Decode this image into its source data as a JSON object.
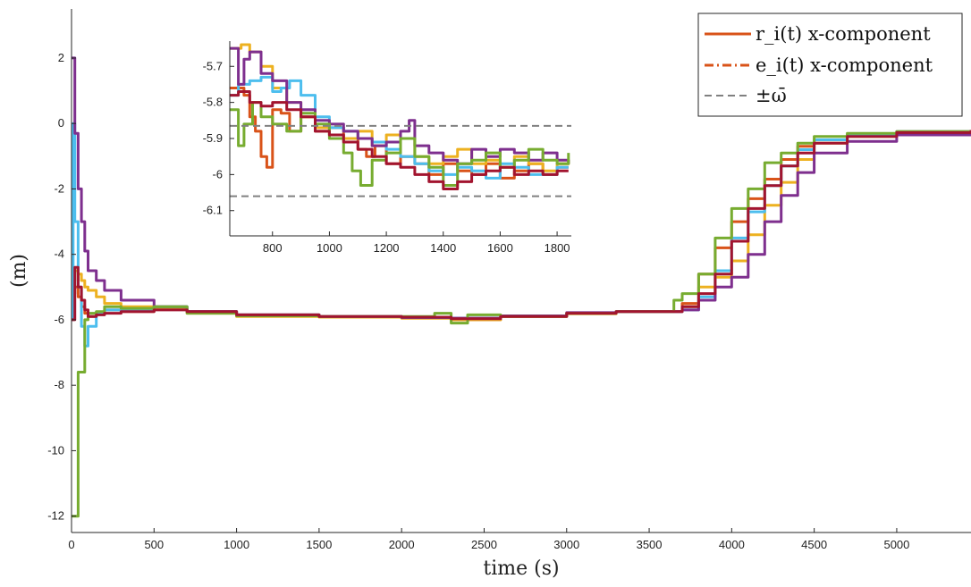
{
  "chart_data": {
    "type": "line",
    "xlabel": "time (s)",
    "ylabel": "(m)",
    "xlim": [
      0,
      5450
    ],
    "ylim": [
      -12.5,
      3.5
    ],
    "xticks": [
      "0",
      "500",
      "1000",
      "1500",
      "2000",
      "2500",
      "3000",
      "3500",
      "4000",
      "4500",
      "5000"
    ],
    "yticks": [
      "2",
      "0",
      "-2",
      "-4",
      "-6",
      "-8",
      "-10",
      "-12"
    ],
    "grid": false,
    "legend_position": "top-right",
    "legend": [
      {
        "label": "r_i(t) x-component",
        "style": "solid",
        "color": "#d95319"
      },
      {
        "label": "e_i(t) x-component",
        "style": "dash-dot",
        "color": "#d95319"
      },
      {
        "label": "±ω̄",
        "style": "dashed",
        "color": "#808080"
      }
    ],
    "series": [
      {
        "color": "#d95319",
        "x": [
          0,
          10,
          20,
          40,
          60,
          80,
          100,
          150,
          200,
          300,
          500,
          700,
          1000,
          1500,
          2000,
          2300,
          2600,
          3000,
          3300,
          3600,
          3700,
          3800,
          3900,
          4000,
          4100,
          4200,
          4300,
          4400,
          4500,
          4700,
          5000,
          5450
        ],
        "y": [
          -6,
          -5.2,
          -5.0,
          -5.3,
          -5.6,
          -5.8,
          -5.9,
          -5.8,
          -5.7,
          -5.75,
          -5.65,
          -5.75,
          -5.85,
          -5.9,
          -5.95,
          -6.0,
          -5.9,
          -5.8,
          -5.75,
          -5.75,
          -5.5,
          -4.6,
          -3.8,
          -3.0,
          -2.3,
          -1.7,
          -1.1,
          -0.7,
          -0.5,
          -0.35,
          -0.25,
          -0.2
        ]
      },
      {
        "color": "#edb120",
        "x": [
          0,
          20,
          40,
          60,
          80,
          100,
          150,
          200,
          300,
          500,
          700,
          1000,
          1500,
          2000,
          2300,
          2600,
          3000,
          3300,
          3600,
          3700,
          3800,
          3900,
          4000,
          4100,
          4200,
          4300,
          4400,
          4500,
          4700,
          5000,
          5450
        ],
        "y": [
          -4.8,
          -4.5,
          -4.6,
          -4.8,
          -5.0,
          -5.1,
          -5.3,
          -5.5,
          -5.6,
          -5.65,
          -5.8,
          -5.9,
          -5.92,
          -5.95,
          -6.0,
          -5.9,
          -5.82,
          -5.75,
          -5.75,
          -5.6,
          -5.0,
          -4.7,
          -4.2,
          -3.4,
          -2.5,
          -1.8,
          -1.1,
          -0.6,
          -0.4,
          -0.3,
          -0.2
        ]
      },
      {
        "color": "#4dbeee",
        "x": [
          0,
          10,
          20,
          40,
          60,
          80,
          100,
          150,
          200,
          300,
          500,
          700,
          1000,
          1500,
          2000,
          2300,
          2600,
          3000,
          3300,
          3600,
          3700,
          3800,
          3900,
          4000,
          4100,
          4200,
          4300,
          4400,
          4500,
          4700,
          5000,
          5450
        ],
        "y": [
          -6,
          0,
          -3,
          -5,
          -6.2,
          -6.8,
          -6.2,
          -5.8,
          -5.7,
          -5.7,
          -5.6,
          -5.75,
          -5.85,
          -5.9,
          -5.93,
          -5.95,
          -5.88,
          -5.8,
          -5.75,
          -5.75,
          -5.7,
          -5.3,
          -4.5,
          -3.5,
          -2.7,
          -1.9,
          -1.3,
          -0.8,
          -0.5,
          -0.35,
          -0.25,
          -0.2
        ]
      },
      {
        "color": "#7e2f8e",
        "x": [
          0,
          20,
          40,
          60,
          80,
          100,
          150,
          200,
          300,
          500,
          700,
          1000,
          1500,
          2000,
          2300,
          2600,
          3000,
          3300,
          3600,
          3700,
          3800,
          3900,
          4000,
          4100,
          4200,
          4300,
          4400,
          4500,
          4700,
          5000,
          5450
        ],
        "y": [
          2,
          -0.3,
          -2.0,
          -3.0,
          -3.9,
          -4.5,
          -4.8,
          -5.1,
          -5.4,
          -5.6,
          -5.75,
          -5.85,
          -5.9,
          -5.93,
          -5.95,
          -5.88,
          -5.78,
          -5.75,
          -5.75,
          -5.7,
          -5.4,
          -5.0,
          -4.7,
          -4.0,
          -3.0,
          -2.2,
          -1.5,
          -0.9,
          -0.55,
          -0.35,
          -0.2
        ]
      },
      {
        "color": "#77ac30",
        "x": [
          0,
          20,
          40,
          60,
          80,
          100,
          150,
          200,
          300,
          500,
          700,
          1000,
          1500,
          2000,
          2200,
          2300,
          2400,
          2600,
          3000,
          3300,
          3600,
          3650,
          3700,
          3800,
          3900,
          4000,
          4100,
          4200,
          4300,
          4400,
          4500,
          4700,
          5000,
          5450
        ],
        "y": [
          -12,
          -12,
          -7.6,
          -7.6,
          -6.0,
          -5.8,
          -5.75,
          -5.6,
          -5.65,
          -5.6,
          -5.8,
          -5.88,
          -5.9,
          -5.9,
          -5.8,
          -6.1,
          -5.85,
          -5.9,
          -5.8,
          -5.75,
          -5.75,
          -5.4,
          -5.2,
          -4.6,
          -3.5,
          -2.6,
          -2.0,
          -1.2,
          -0.9,
          -0.6,
          -0.4,
          -0.3,
          -0.25,
          -0.2
        ]
      },
      {
        "color": "#a2142f",
        "x": [
          0,
          20,
          40,
          60,
          80,
          100,
          150,
          200,
          300,
          500,
          700,
          1000,
          1500,
          2000,
          2300,
          2600,
          3000,
          3300,
          3600,
          3700,
          3800,
          3900,
          4000,
          4100,
          4200,
          4300,
          4400,
          4500,
          4700,
          5000,
          5450
        ],
        "y": [
          -6,
          -4.4,
          -5.0,
          -5.4,
          -5.7,
          -5.9,
          -5.85,
          -5.8,
          -5.75,
          -5.7,
          -5.75,
          -5.85,
          -5.9,
          -5.92,
          -5.97,
          -5.9,
          -5.8,
          -5.75,
          -5.75,
          -5.6,
          -5.2,
          -4.6,
          -3.6,
          -2.6,
          -1.9,
          -1.3,
          -0.9,
          -0.6,
          -0.4,
          -0.28,
          -0.2
        ]
      }
    ],
    "inset": {
      "xlim": [
        650,
        1850
      ],
      "ylim": [
        -6.17,
        -5.63
      ],
      "xticks": [
        "800",
        "1000",
        "1200",
        "1400",
        "1600",
        "1800"
      ],
      "yticks": [
        "-5.7",
        "-5.8",
        "-5.9",
        "-6",
        "-6.1"
      ],
      "bounds": [
        -5.865,
        -6.06
      ],
      "series": [
        {
          "color": "#d95319",
          "x": [
            650,
            700,
            720,
            740,
            760,
            780,
            800,
            830,
            860,
            900,
            950,
            1000,
            1050,
            1100,
            1130,
            1160,
            1200,
            1250,
            1300,
            1350,
            1400,
            1450,
            1500,
            1550,
            1600,
            1650,
            1700,
            1750,
            1800,
            1840
          ],
          "y": [
            -5.76,
            -5.78,
            -5.84,
            -5.88,
            -5.95,
            -5.98,
            -5.82,
            -5.83,
            -5.88,
            -5.84,
            -5.88,
            -5.87,
            -5.9,
            -5.93,
            -5.95,
            -5.92,
            -5.97,
            -5.95,
            -5.97,
            -6.0,
            -5.97,
            -5.99,
            -6.0,
            -5.97,
            -6.01,
            -5.99,
            -5.97,
            -6.0,
            -5.98,
            -5.98
          ]
        },
        {
          "color": "#edb120",
          "x": [
            650,
            690,
            720,
            760,
            800,
            850,
            900,
            950,
            1000,
            1050,
            1100,
            1150,
            1200,
            1250,
            1300,
            1350,
            1400,
            1450,
            1500,
            1550,
            1600,
            1650,
            1700,
            1750,
            1800,
            1840
          ],
          "y": [
            -5.65,
            -5.64,
            -5.66,
            -5.7,
            -5.76,
            -5.8,
            -5.84,
            -5.87,
            -5.89,
            -5.9,
            -5.88,
            -5.92,
            -5.89,
            -5.9,
            -5.95,
            -5.97,
            -5.95,
            -5.93,
            -5.97,
            -5.96,
            -5.98,
            -5.95,
            -5.97,
            -5.99,
            -5.97,
            -5.96
          ]
        },
        {
          "color": "#4dbeee",
          "x": [
            650,
            680,
            720,
            760,
            800,
            830,
            860,
            900,
            950,
            1000,
            1050,
            1100,
            1150,
            1200,
            1250,
            1300,
            1350,
            1400,
            1450,
            1500,
            1550,
            1600,
            1650,
            1700,
            1750,
            1800,
            1840
          ],
          "y": [
            -5.78,
            -5.75,
            -5.74,
            -5.73,
            -5.77,
            -5.76,
            -5.74,
            -5.78,
            -5.84,
            -5.87,
            -5.88,
            -5.9,
            -5.91,
            -5.93,
            -5.95,
            -5.97,
            -5.99,
            -6.0,
            -5.98,
            -5.99,
            -6.01,
            -5.97,
            -5.98,
            -6.0,
            -6.0,
            -5.98,
            -5.98
          ]
        },
        {
          "color": "#7e2f8e",
          "x": [
            650,
            680,
            700,
            720,
            760,
            800,
            850,
            900,
            950,
            1000,
            1050,
            1100,
            1150,
            1200,
            1250,
            1280,
            1300,
            1350,
            1400,
            1450,
            1500,
            1550,
            1600,
            1650,
            1700,
            1750,
            1800,
            1840
          ],
          "y": [
            -5.65,
            -5.75,
            -5.68,
            -5.66,
            -5.72,
            -5.74,
            -5.8,
            -5.82,
            -5.85,
            -5.86,
            -5.88,
            -5.9,
            -5.92,
            -5.91,
            -5.88,
            -5.85,
            -5.92,
            -5.94,
            -5.96,
            -5.97,
            -5.93,
            -5.95,
            -5.93,
            -5.94,
            -5.96,
            -5.94,
            -5.96,
            -5.97
          ]
        },
        {
          "color": "#77ac30",
          "x": [
            650,
            680,
            700,
            730,
            760,
            800,
            850,
            900,
            950,
            1000,
            1050,
            1080,
            1110,
            1150,
            1200,
            1250,
            1300,
            1350,
            1400,
            1450,
            1500,
            1550,
            1600,
            1650,
            1700,
            1750,
            1800,
            1840
          ],
          "y": [
            -5.82,
            -5.92,
            -5.86,
            -5.8,
            -5.84,
            -5.86,
            -5.88,
            -5.83,
            -5.86,
            -5.9,
            -5.94,
            -5.99,
            -6.03,
            -5.96,
            -5.94,
            -5.9,
            -5.95,
            -5.98,
            -6.03,
            -5.97,
            -5.96,
            -5.94,
            -5.98,
            -5.96,
            -5.93,
            -5.96,
            -5.97,
            -5.94
          ]
        },
        {
          "color": "#a2142f",
          "x": [
            650,
            680,
            720,
            760,
            800,
            850,
            900,
            950,
            1000,
            1050,
            1100,
            1150,
            1200,
            1250,
            1300,
            1350,
            1400,
            1450,
            1500,
            1550,
            1600,
            1650,
            1700,
            1750,
            1800,
            1840
          ],
          "y": [
            -5.78,
            -5.77,
            -5.8,
            -5.81,
            -5.8,
            -5.82,
            -5.84,
            -5.88,
            -5.89,
            -5.91,
            -5.93,
            -5.95,
            -5.97,
            -5.98,
            -6.0,
            -6.02,
            -6.04,
            -6.02,
            -6.0,
            -5.99,
            -5.98,
            -6.0,
            -5.99,
            -6.0,
            -5.99,
            -5.99
          ]
        }
      ]
    }
  }
}
